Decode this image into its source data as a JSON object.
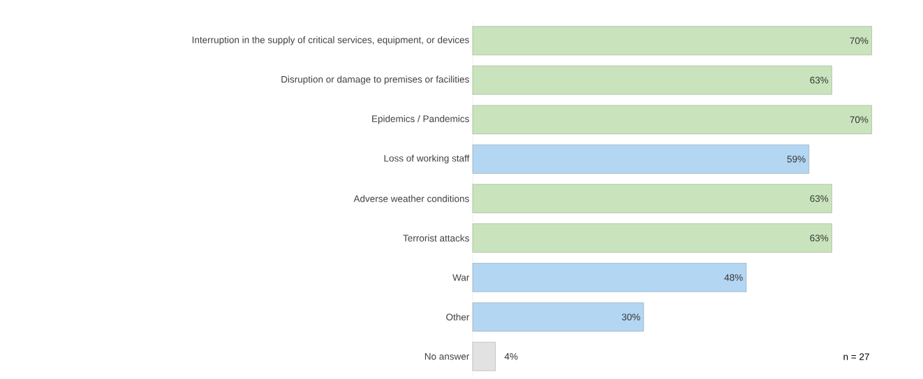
{
  "chart_data": {
    "type": "bar",
    "orientation": "horizontal",
    "categories": [
      "Interruption in the supply of critical services, equipment, or devices",
      "Disruption or damage to premises or facilities",
      "Epidemics / Pandemics",
      "Loss of working staff",
      "Adverse weather conditions",
      "Terrorist attacks",
      "War",
      "Other",
      "No answer"
    ],
    "values": [
      70,
      63,
      70,
      59,
      63,
      63,
      48,
      30,
      4
    ],
    "value_labels": [
      "70%",
      "63%",
      "70%",
      "59%",
      "63%",
      "63%",
      "48%",
      "30%",
      "4%"
    ],
    "colors": [
      "#c9e4bc",
      "#c9e4bc",
      "#c9e4bc",
      "#b3d6f2",
      "#c9e4bc",
      "#c9e4bc",
      "#b3d6f2",
      "#b3d6f2",
      "#e2e2e2"
    ],
    "annotations": [
      "n = 27"
    ]
  }
}
